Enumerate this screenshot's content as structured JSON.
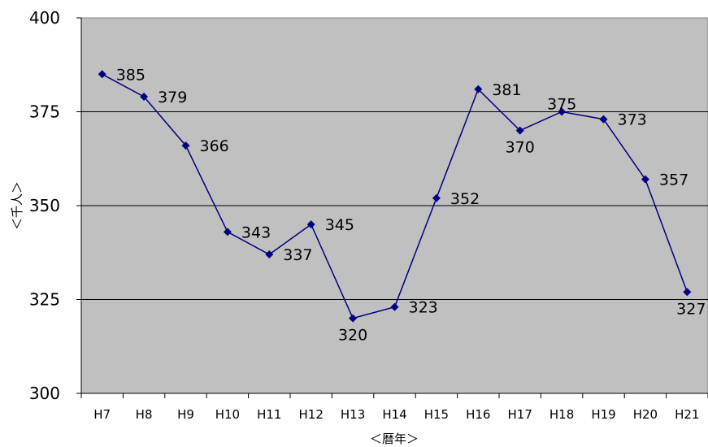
{
  "chart_data": {
    "type": "line",
    "title": "",
    "xlabel": "＜暦年＞",
    "ylabel": "＜千人＞",
    "categories": [
      "H7",
      "H8",
      "H9",
      "H10",
      "H11",
      "H12",
      "H13",
      "H14",
      "H15",
      "H16",
      "H17",
      "H18",
      "H19",
      "H20",
      "H21"
    ],
    "series": [
      {
        "values": [
          385,
          379,
          366,
          343,
          337,
          345,
          320,
          323,
          352,
          381,
          370,
          375,
          373,
          357,
          327
        ]
      }
    ],
    "data_labels": [
      "385",
      "379",
      "366",
      "343",
      "337",
      "345",
      "320",
      "323",
      "352",
      "381",
      "370",
      "375",
      "373",
      "357",
      "327"
    ],
    "ylim": [
      300,
      400
    ],
    "yticks": [
      300,
      325,
      350,
      375,
      400
    ],
    "grid": "horizontal",
    "legend": "none",
    "colors": {
      "plot_bg": "#c0c0c0",
      "line": "#000080",
      "marker": "#000080",
      "grid": "#000000"
    }
  }
}
